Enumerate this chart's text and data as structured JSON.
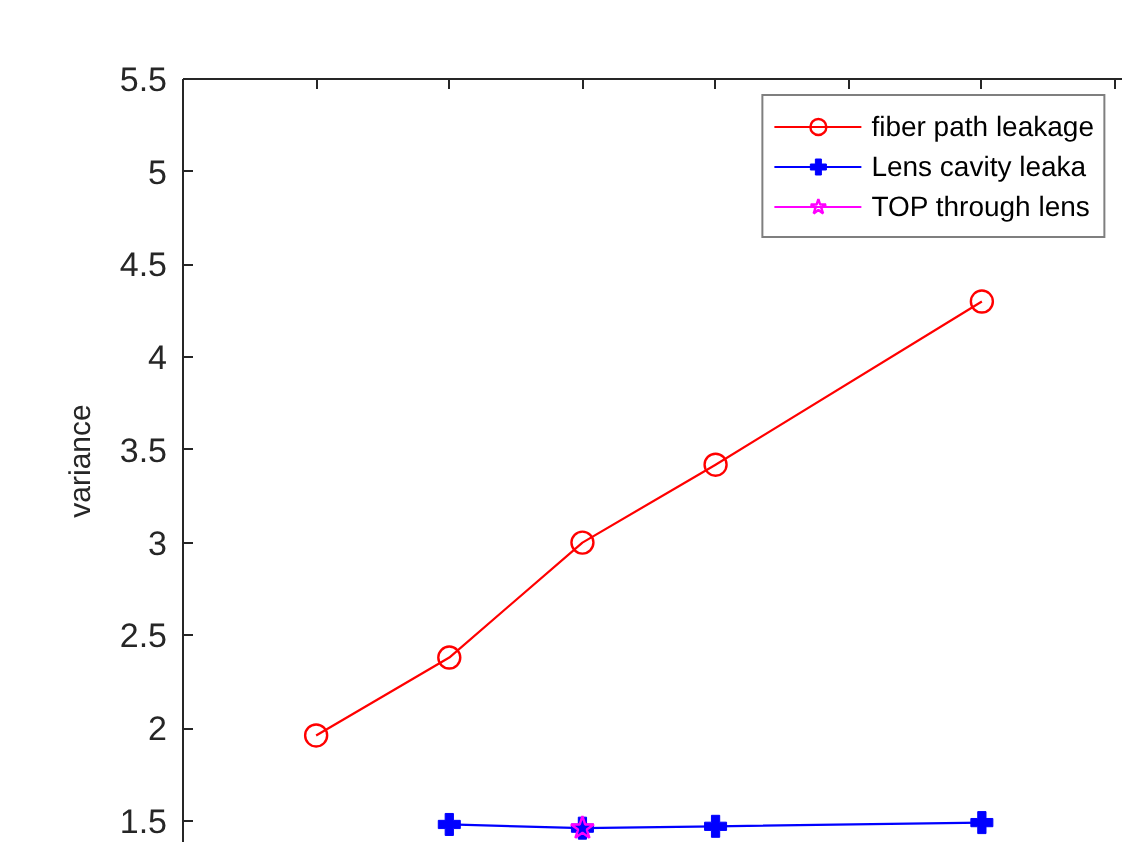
{
  "chart_data": {
    "type": "line",
    "ylabel": "variance",
    "categories": [
      null,
      null,
      null,
      null,
      null,
      null,
      null
    ],
    "ylim": [
      1.38,
      5.5
    ],
    "yticks": [
      1.5,
      2,
      2.5,
      3,
      3.5,
      4,
      4.5,
      5,
      5.5
    ],
    "tick_labels": "y",
    "legend": "top right",
    "line_style": "solid",
    "series": [
      {
        "name": "fiber path leakage",
        "color": "#ff0000",
        "marker": "circle",
        "values": [
          1.96,
          2.38,
          3.0,
          3.42,
          null,
          4.3,
          null
        ]
      },
      {
        "name": "Lens cavity leaka",
        "color": "#0000ff",
        "marker": "cross",
        "values": [
          null,
          1.48,
          1.46,
          1.47,
          null,
          1.49,
          null
        ]
      },
      {
        "name": "TOP through lens",
        "color": "#ff00ff",
        "marker": "star",
        "values": [
          null,
          null,
          1.46,
          null,
          null,
          null,
          null
        ]
      }
    ]
  }
}
